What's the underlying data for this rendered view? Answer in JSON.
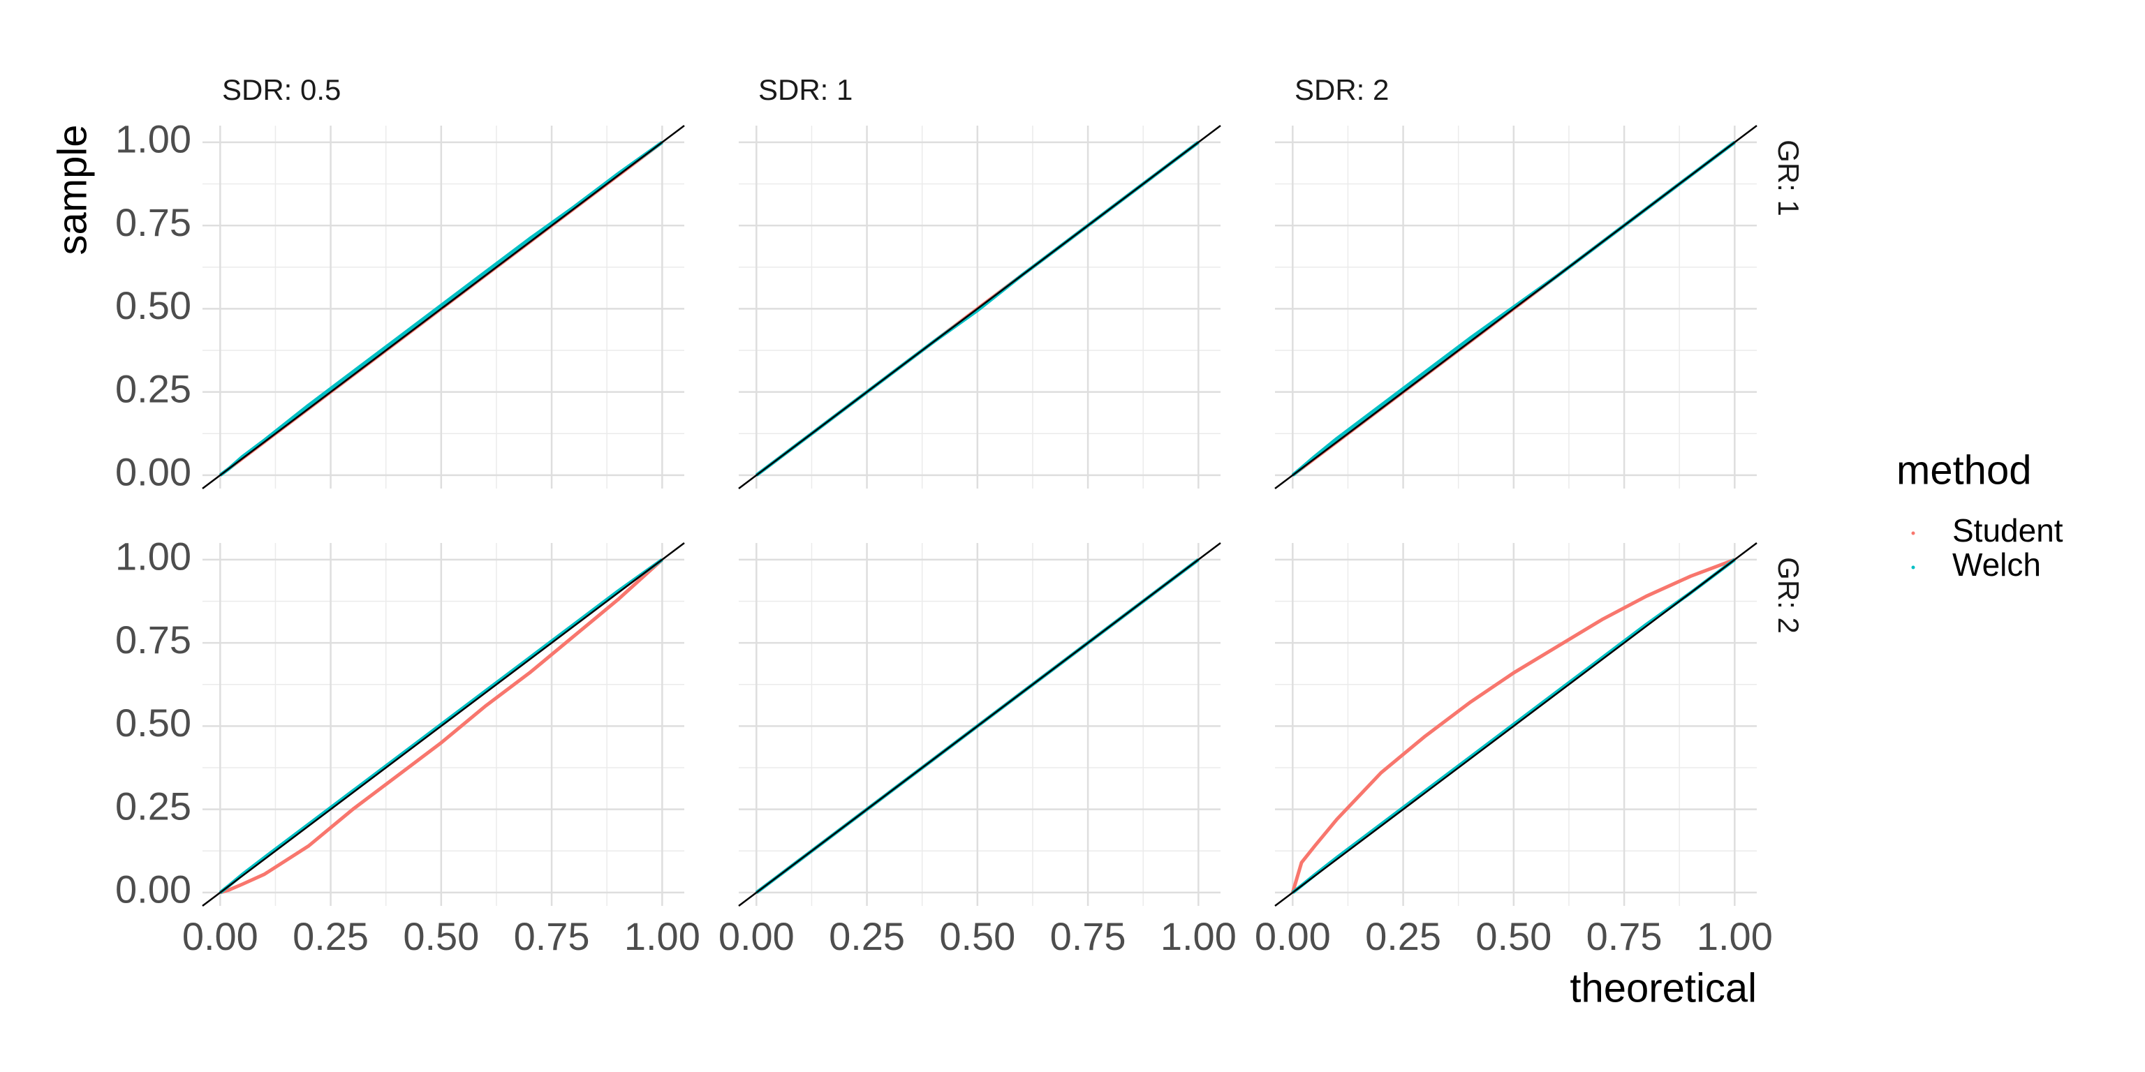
{
  "chart_data": {
    "type": "line",
    "x_label": "theoretical",
    "y_label": "sample",
    "legend_title": "method",
    "columns": [
      "SDR: 0.5",
      "SDR: 1",
      "SDR: 2"
    ],
    "rows": [
      "GR: 1",
      "GR: 2"
    ],
    "x": [
      0,
      0.02,
      0.05,
      0.1,
      0.2,
      0.3,
      0.4,
      0.5,
      0.6,
      0.7,
      0.8,
      0.9,
      1
    ],
    "xlim": [
      -0.04,
      1.05
    ],
    "ylim": [
      -0.04,
      1.05
    ],
    "xticks": [
      {
        "value": 0,
        "label": "0.00"
      },
      {
        "value": 0.25,
        "label": "0.25"
      },
      {
        "value": 0.5,
        "label": "0.50"
      },
      {
        "value": 0.75,
        "label": "0.75"
      },
      {
        "value": 1,
        "label": "1.00"
      }
    ],
    "yticks": [
      {
        "value": 0,
        "label": "0.00"
      },
      {
        "value": 0.25,
        "label": "0.25"
      },
      {
        "value": 0.5,
        "label": "0.50"
      },
      {
        "value": 0.75,
        "label": "0.75"
      },
      {
        "value": 1,
        "label": "1.00"
      }
    ],
    "grid": true,
    "minor_grid": true,
    "panels": [
      {
        "series": [
          {
            "name": "Student",
            "color": "#F8766D",
            "values": [
              0,
              0.02,
              0.05,
              0.1,
              0.2,
              0.3,
              0.4,
              0.5,
              0.6,
              0.7,
              0.8,
              0.9,
              1
            ]
          },
          {
            "name": "Welch",
            "color": "#00BFC4",
            "values": [
              0,
              0.02,
              0.055,
              0.105,
              0.21,
              0.31,
              0.41,
              0.51,
              0.61,
              0.71,
              0.805,
              0.905,
              1
            ]
          }
        ]
      },
      {
        "series": [
          {
            "name": "Student",
            "color": "#F8766D",
            "values": [
              0,
              0.02,
              0.05,
              0.1,
              0.2,
              0.3,
              0.4,
              0.5,
              0.6,
              0.7,
              0.8,
              0.9,
              1
            ]
          },
          {
            "name": "Welch",
            "color": "#00BFC4",
            "values": [
              0,
              0.02,
              0.05,
              0.1,
              0.2,
              0.3,
              0.4,
              0.495,
              0.6,
              0.7,
              0.8,
              0.9,
              1
            ]
          }
        ]
      },
      {
        "series": [
          {
            "name": "Student",
            "color": "#F8766D",
            "values": [
              0,
              0.02,
              0.05,
              0.1,
              0.2,
              0.3,
              0.4,
              0.5,
              0.6,
              0.7,
              0.8,
              0.9,
              1
            ]
          },
          {
            "name": "Welch",
            "color": "#00BFC4",
            "values": [
              0,
              0.022,
              0.056,
              0.11,
              0.21,
              0.31,
              0.41,
              0.505,
              0.6,
              0.7,
              0.8,
              0.9,
              1
            ]
          }
        ]
      },
      {
        "series": [
          {
            "name": "Student",
            "color": "#F8766D",
            "values": [
              0,
              0.008,
              0.025,
              0.055,
              0.14,
              0.25,
              0.35,
              0.45,
              0.56,
              0.66,
              0.77,
              0.88,
              1
            ]
          },
          {
            "name": "Welch",
            "color": "#00BFC4",
            "values": [
              0,
              0.021,
              0.054,
              0.105,
              0.205,
              0.305,
              0.405,
              0.505,
              0.605,
              0.705,
              0.805,
              0.905,
              1
            ]
          }
        ]
      },
      {
        "series": [
          {
            "name": "Student",
            "color": "#F8766D",
            "values": [
              0,
              0.02,
              0.05,
              0.1,
              0.2,
              0.3,
              0.4,
              0.5,
              0.6,
              0.7,
              0.8,
              0.9,
              1
            ]
          },
          {
            "name": "Welch",
            "color": "#00BFC4",
            "values": [
              0,
              0.02,
              0.05,
              0.1,
              0.2,
              0.3,
              0.4,
              0.5,
              0.6,
              0.7,
              0.8,
              0.9,
              1
            ]
          }
        ]
      },
      {
        "series": [
          {
            "name": "Student",
            "color": "#F8766D",
            "values": [
              0,
              0.09,
              0.14,
              0.22,
              0.36,
              0.47,
              0.57,
              0.66,
              0.74,
              0.82,
              0.89,
              0.95,
              1
            ]
          },
          {
            "name": "Welch",
            "color": "#00BFC4",
            "values": [
              0,
              0.021,
              0.053,
              0.105,
              0.205,
              0.305,
              0.405,
              0.505,
              0.605,
              0.705,
              0.805,
              0.9,
              1
            ]
          }
        ]
      }
    ]
  }
}
